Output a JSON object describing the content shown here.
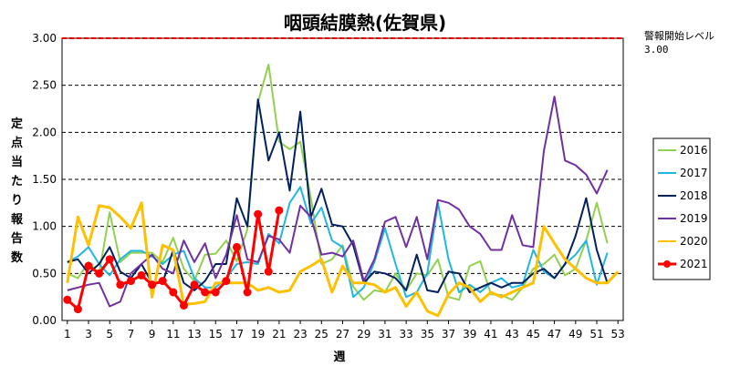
{
  "chart_data": {
    "type": "line",
    "title": "咽頭結膜熱(佐賀県)",
    "xlabel": "週",
    "ylabel": "定点当たり報告数",
    "ylim": [
      0,
      3.0
    ],
    "yticks": [
      "0.00",
      "0.50",
      "1.00",
      "1.50",
      "2.00",
      "2.50",
      "3.00"
    ],
    "xticks": [
      1,
      3,
      5,
      7,
      9,
      11,
      13,
      15,
      17,
      19,
      21,
      23,
      25,
      27,
      29,
      31,
      33,
      35,
      37,
      39,
      41,
      43,
      45,
      47,
      49,
      51,
      53
    ],
    "alert_level_label": "警報開始レベル",
    "alert_level_value": "3.00",
    "alert_level": 3.0,
    "legend_position": "right",
    "series": [
      {
        "name": "2016",
        "color": "#92d050",
        "values": [
          0.5,
          0.45,
          0.62,
          0.5,
          1.15,
          0.62,
          0.72,
          0.72,
          0.72,
          0.62,
          0.88,
          0.55,
          0.42,
          0.7,
          0.71,
          0.85,
          0.63,
          0.97,
          2.32,
          2.72,
          1.9,
          1.82,
          1.9,
          1.3,
          0.6,
          0.65,
          0.8,
          0.36,
          0.22,
          0.32,
          0.3,
          0.5,
          0.32,
          0.5,
          0.48,
          0.65,
          0.25,
          0.22,
          0.58,
          0.63,
          0.28,
          0.27,
          0.22,
          0.35,
          0.55,
          0.6,
          0.7,
          0.48,
          0.55,
          0.85,
          1.25,
          0.82
        ]
      },
      {
        "name": "2017",
        "color": "#1fb6e0",
        "values": [
          0.62,
          0.68,
          0.78,
          0.6,
          0.48,
          0.65,
          0.74,
          0.74,
          0.68,
          0.6,
          0.7,
          0.74,
          0.45,
          0.35,
          0.35,
          0.45,
          0.6,
          0.62,
          0.6,
          0.92,
          0.82,
          1.25,
          1.42,
          1.03,
          1.2,
          0.85,
          0.78,
          0.25,
          0.35,
          0.62,
          0.98,
          0.6,
          0.25,
          0.3,
          0.5,
          1.25,
          0.65,
          0.3,
          0.38,
          0.3,
          0.4,
          0.45,
          0.35,
          0.38,
          0.75,
          0.52,
          0.45,
          0.6,
          0.7,
          0.85,
          0.38,
          0.72
        ]
      },
      {
        "name": "2018",
        "color": "#002060",
        "values": [
          0.62,
          0.65,
          0.5,
          0.6,
          0.78,
          0.52,
          0.45,
          0.6,
          0.4,
          0.4,
          0.75,
          0.4,
          0.32,
          0.42,
          0.6,
          0.6,
          1.3,
          1.0,
          2.35,
          1.7,
          2.0,
          1.38,
          2.22,
          1.1,
          1.4,
          1.02,
          1.0,
          0.8,
          0.4,
          0.52,
          0.5,
          0.45,
          0.32,
          0.7,
          0.32,
          0.3,
          0.52,
          0.5,
          0.3,
          0.35,
          0.4,
          0.35,
          0.4,
          0.4,
          0.5,
          0.55,
          0.45,
          0.6,
          0.9,
          1.3,
          0.75,
          0.4
        ]
      },
      {
        "name": "2019",
        "color": "#7030a0",
        "values": [
          0.32,
          0.35,
          0.38,
          0.4,
          0.15,
          0.2,
          0.5,
          0.6,
          0.7,
          0.55,
          0.5,
          0.85,
          0.62,
          0.82,
          0.45,
          0.7,
          1.12,
          0.65,
          0.62,
          0.9,
          0.86,
          0.72,
          1.22,
          1.1,
          0.7,
          0.72,
          0.68,
          0.85,
          0.42,
          0.65,
          1.05,
          1.1,
          0.78,
          1.1,
          0.65,
          1.28,
          1.25,
          1.18,
          1.0,
          0.92,
          0.75,
          0.75,
          1.12,
          0.8,
          0.78,
          1.8,
          2.38,
          1.7,
          1.65,
          1.55,
          1.35,
          1.6
        ]
      },
      {
        "name": "2020",
        "color": "#ffc000",
        "values": [
          0.4,
          1.1,
          0.8,
          1.22,
          1.2,
          1.1,
          0.98,
          1.25,
          0.25,
          0.8,
          0.75,
          0.17,
          0.18,
          0.2,
          0.4,
          0.4,
          0.4,
          0.4,
          0.32,
          0.35,
          0.3,
          0.32,
          0.52,
          0.58,
          0.65,
          0.3,
          0.58,
          0.4,
          0.4,
          0.38,
          0.3,
          0.35,
          0.15,
          0.3,
          0.1,
          0.05,
          0.28,
          0.4,
          0.35,
          0.2,
          0.3,
          0.25,
          0.3,
          0.35,
          0.4,
          1.0,
          0.82,
          0.65,
          0.55,
          0.45,
          0.4,
          0.4,
          0.52
        ]
      },
      {
        "name": "2021",
        "color": "#ff0000",
        "values": [
          0.22,
          0.12,
          0.58,
          0.5,
          0.65,
          0.38,
          0.42,
          0.48,
          0.38,
          0.42,
          0.3,
          0.16,
          0.38,
          0.3,
          0.3,
          0.42,
          0.78,
          0.3,
          1.13,
          0.52,
          1.17
        ]
      }
    ]
  }
}
